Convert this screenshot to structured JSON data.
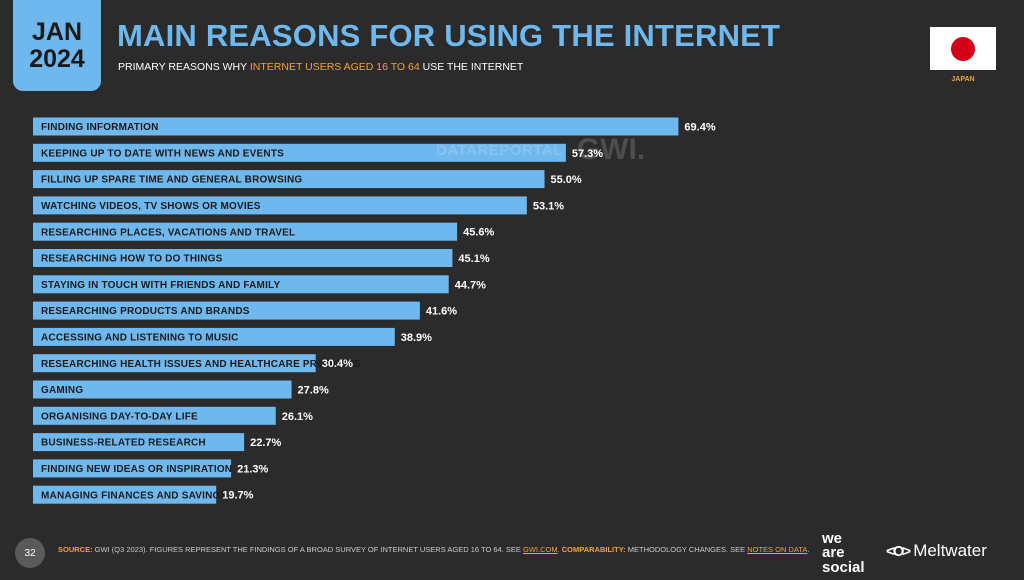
{
  "header": {
    "month": "JAN",
    "year": "2024",
    "title": "MAIN REASONS FOR USING THE INTERNET",
    "subtitle_pre": "PRIMARY REASONS WHY ",
    "subtitle_highlight": "INTERNET USERS AGED 16 TO 64",
    "subtitle_post": " USE THE INTERNET"
  },
  "flag": {
    "country": "JAPAN",
    "icon": "japan-flag-icon"
  },
  "watermark": {
    "datareportal": "DATAREPORTAL",
    "gwi": "GWI."
  },
  "chart_data": {
    "type": "bar",
    "orientation": "horizontal",
    "title": "MAIN REASONS FOR USING THE INTERNET",
    "xlim": [
      0,
      100
    ],
    "unit": "%",
    "categories": [
      "FINDING INFORMATION",
      "KEEPING UP TO DATE WITH NEWS AND EVENTS",
      "FILLING UP SPARE TIME AND GENERAL BROWSING",
      "WATCHING VIDEOS, TV SHOWS OR MOVIES",
      "RESEARCHING PLACES, VACATIONS AND TRAVEL",
      "RESEARCHING HOW TO DO THINGS",
      "STAYING IN TOUCH WITH FRIENDS AND FAMILY",
      "RESEARCHING PRODUCTS AND BRANDS",
      "ACCESSING AND LISTENING TO MUSIC",
      "RESEARCHING HEALTH ISSUES AND HEALTHCARE PRODUCTS",
      "GAMING",
      "ORGANISING DAY-TO-DAY LIFE",
      "BUSINESS-RELATED RESEARCH",
      "FINDING NEW IDEAS OR INSPIRATION",
      "MANAGING FINANCES AND SAVINGS"
    ],
    "values": [
      69.4,
      57.3,
      55.0,
      53.1,
      45.6,
      45.1,
      44.7,
      41.6,
      38.9,
      30.4,
      27.8,
      26.1,
      22.7,
      21.3,
      19.7
    ],
    "value_labels": [
      "69.4%",
      "57.3%",
      "55.0%",
      "53.1%",
      "45.6%",
      "45.1%",
      "44.7%",
      "41.6%",
      "38.9%",
      "30.4%",
      "27.8%",
      "26.1%",
      "22.7%",
      "21.3%",
      "19.7%"
    ],
    "bar_color": "#6fb8ee",
    "grid": false,
    "legend": "none"
  },
  "footer": {
    "page_number": "32",
    "source_key": "SOURCE:",
    "source_text": " GWI (Q3 2023). FIGURES REPRESENT THE FINDINGS OF A BROAD SURVEY OF INTERNET USERS AGED 16 TO 64. SEE ",
    "source_link": "GWI.COM",
    "comparability_key": "COMPARABILITY:",
    "comparability_text": " METHODOLOGY CHANGES. SEE ",
    "notes_link": "NOTES ON DATA",
    "end": "."
  },
  "logos": {
    "we": "we",
    "are": "are",
    "social": "social",
    "meltwater_mark": "<O>",
    "meltwater": "Meltwater"
  },
  "colors": {
    "background": "#2b2b2b",
    "accent": "#6fb8ee",
    "highlight": "#f4a23c"
  }
}
